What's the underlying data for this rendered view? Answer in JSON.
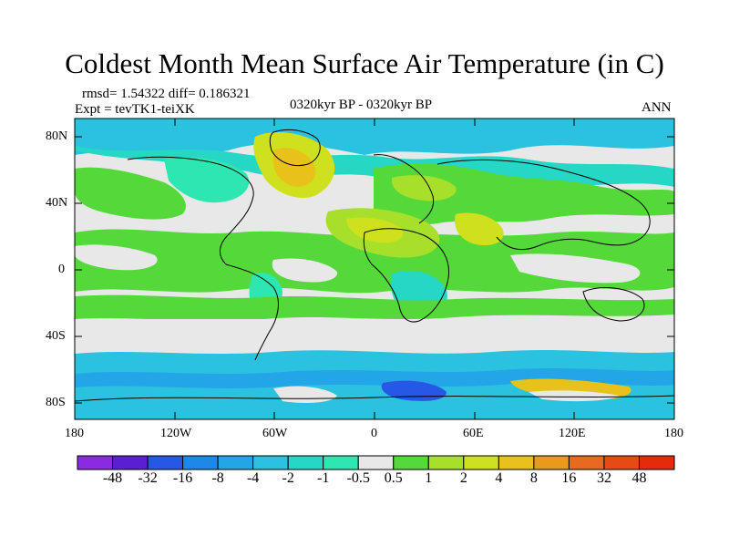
{
  "title": "Coldest Month Mean Surface Air Temperature (in C)",
  "stats": "rmsd= 1.54322 diff= 0.186321",
  "experiment": "Expt = tevTK1-teiXK",
  "period": "0320kyr BP - 0320kyr BP",
  "season": "ANN",
  "lat_labels": [
    "80N",
    "40N",
    "0",
    "40S",
    "80S"
  ],
  "lon_labels": [
    "180",
    "120W",
    "60W",
    "0",
    "60E",
    "120E",
    "180"
  ],
  "colorbar": {
    "labels": [
      "-48",
      "-32",
      "-16",
      "-8",
      "-4",
      "-2",
      "-1",
      "-0.5",
      "0.5",
      "1",
      "2",
      "4",
      "8",
      "16",
      "32",
      "48"
    ],
    "colors": [
      "#8a2be2",
      "#5a1fd1",
      "#2757e6",
      "#1e88e8",
      "#22a6e8",
      "#2bc2e0",
      "#26d7c6",
      "#2ee6b0",
      "#e8e8e8",
      "#55d839",
      "#a6e02b",
      "#cfe01c",
      "#e8c21a",
      "#e89a1c",
      "#e86a1e",
      "#e84a14",
      "#e82a0c"
    ]
  }
}
